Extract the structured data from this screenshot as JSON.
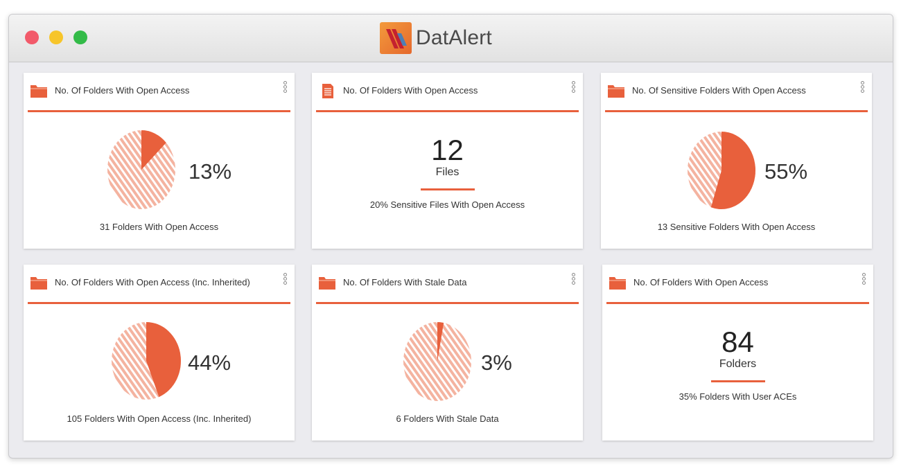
{
  "app": {
    "title": "DatAlert"
  },
  "colors": {
    "accent": "#e8603c",
    "hatch_light": "#f4b3a0"
  },
  "cards": [
    {
      "title": "No. Of Folders With Open Access",
      "icon": "folder-icon",
      "type": "pie",
      "percent_label": "13%",
      "fraction": 0.13,
      "caption": "31 Folders With Open Access"
    },
    {
      "title": "No. Of Folders With Open Access",
      "icon": "document-icon",
      "type": "stat",
      "value": "12",
      "unit": "Files",
      "caption": "20% Sensitive Files With Open Access"
    },
    {
      "title": "No. Of Sensitive Folders With Open Access",
      "icon": "folder-icon",
      "type": "pie",
      "percent_label": "55%",
      "fraction": 0.55,
      "caption": "13 Sensitive Folders With Open Access"
    },
    {
      "title": "No. Of Folders With Open Access (Inc. Inherited)",
      "icon": "folder-icon",
      "type": "pie",
      "percent_label": "44%",
      "fraction": 0.44,
      "caption": "105 Folders With Open Access (Inc. Inherited)"
    },
    {
      "title": "No. Of Folders With Stale Data",
      "icon": "folder-icon",
      "type": "pie",
      "percent_label": "3%",
      "fraction": 0.03,
      "caption": "6 Folders With Stale Data"
    },
    {
      "title": "No. Of Folders With Open Access",
      "icon": "folder-icon",
      "type": "stat",
      "value": "84",
      "unit": "Folders",
      "caption": "35% Folders With User ACEs"
    }
  ]
}
